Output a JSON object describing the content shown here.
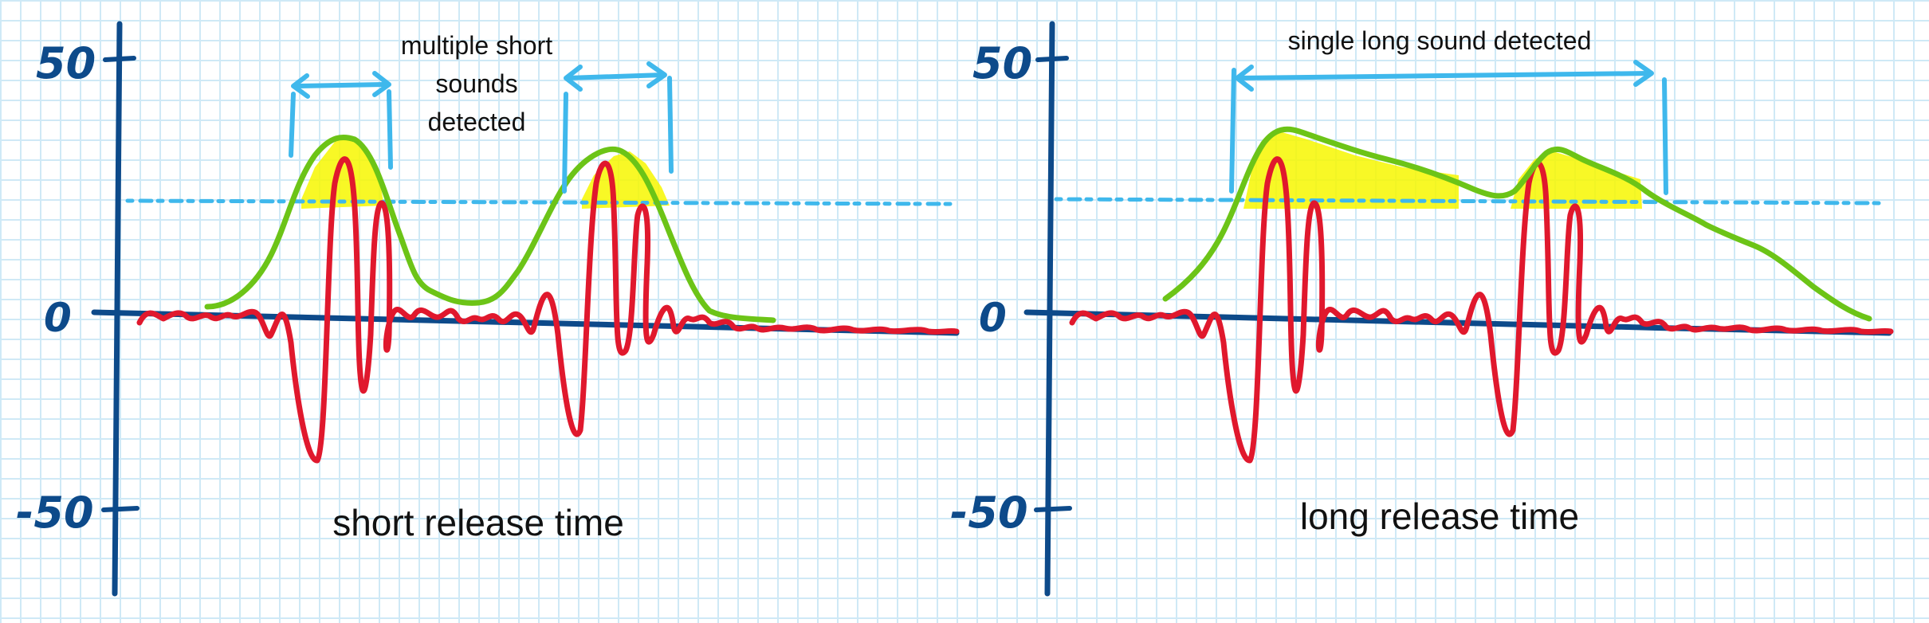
{
  "colors": {
    "axis": "#0d4a8a",
    "signal": "#e0182d",
    "envelope": "#6cc417",
    "threshold": "#3fb8ec",
    "highlight": "#f7f700",
    "annotation": "#3fb8ec",
    "grid": "#cfe9f6"
  },
  "left_panel": {
    "axis_labels": {
      "top": "50",
      "zero": "0",
      "bottom": "-50"
    },
    "annotation": [
      "multiple short",
      "sounds",
      "detected"
    ],
    "caption": "short release time"
  },
  "right_panel": {
    "axis_labels": {
      "top": "50",
      "zero": "0",
      "bottom": "-50"
    },
    "annotation": [
      "single long sound detected"
    ],
    "caption": "long release time"
  }
}
